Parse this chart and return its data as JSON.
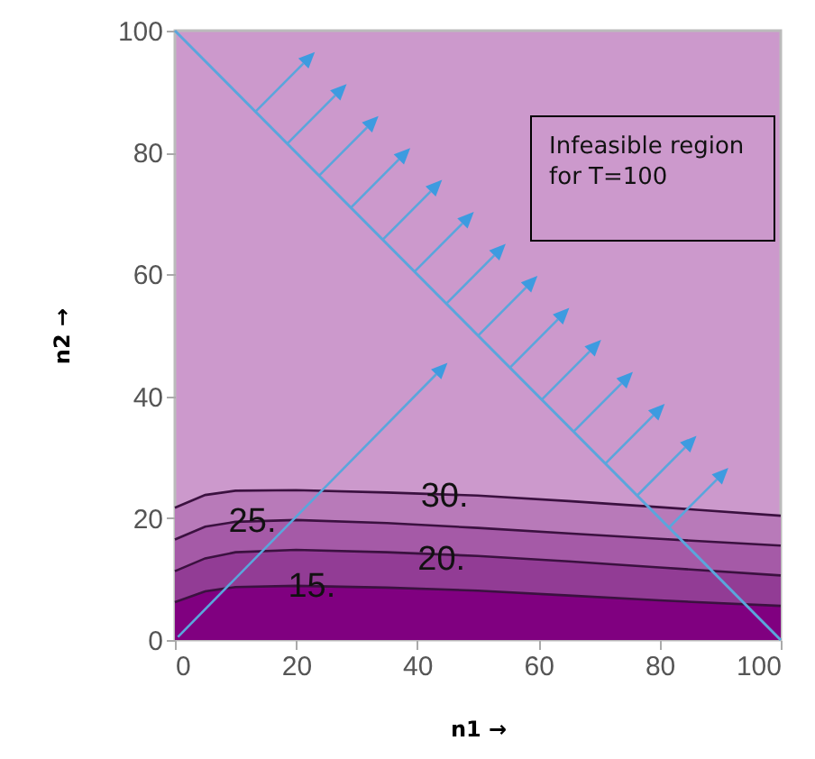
{
  "chart_data": {
    "type": "area",
    "xlabel": "n1 →",
    "ylabel": "n2 →",
    "xlim": [
      0,
      100
    ],
    "ylim": [
      0,
      100
    ],
    "xticks": [
      0,
      20,
      40,
      60,
      80,
      100
    ],
    "yticks": [
      0,
      20,
      40,
      60,
      80,
      100
    ],
    "x": [
      0,
      5,
      10,
      20,
      35,
      50,
      65,
      80,
      100
    ],
    "series": [
      {
        "color": "#b87ab9",
        "values": [
          21.7,
          23.8,
          24.5,
          24.6,
          24.2,
          23.7,
          22.8,
          21.8,
          20.4
        ]
      },
      {
        "color": "#a55aa7",
        "values": [
          16.5,
          18.6,
          19.4,
          19.7,
          19.2,
          18.4,
          17.5,
          16.6,
          15.5
        ]
      },
      {
        "color": "#923c95",
        "values": [
          11.3,
          13.4,
          14.4,
          14.8,
          14.4,
          13.8,
          12.9,
          11.9,
          10.6
        ]
      },
      {
        "color": "#800080",
        "values": [
          6.2,
          8.0,
          8.7,
          8.9,
          8.6,
          8.1,
          7.3,
          6.5,
          5.6
        ]
      },
      {
        "type": "line",
        "color": "#5aa6dc",
        "x": [
          0,
          100
        ],
        "values": [
          100,
          0
        ]
      }
    ],
    "annotations": [
      {
        "text": "30.",
        "x": 44.5,
        "y": 23.7
      },
      {
        "text": "25.",
        "x": 12.8,
        "y": 19.5
      },
      {
        "text": "20.",
        "x": 44,
        "y": 13.3
      },
      {
        "text": "15.",
        "x": 22.6,
        "y": 8.9
      },
      "Infeasible region for T=100"
    ]
  }
}
